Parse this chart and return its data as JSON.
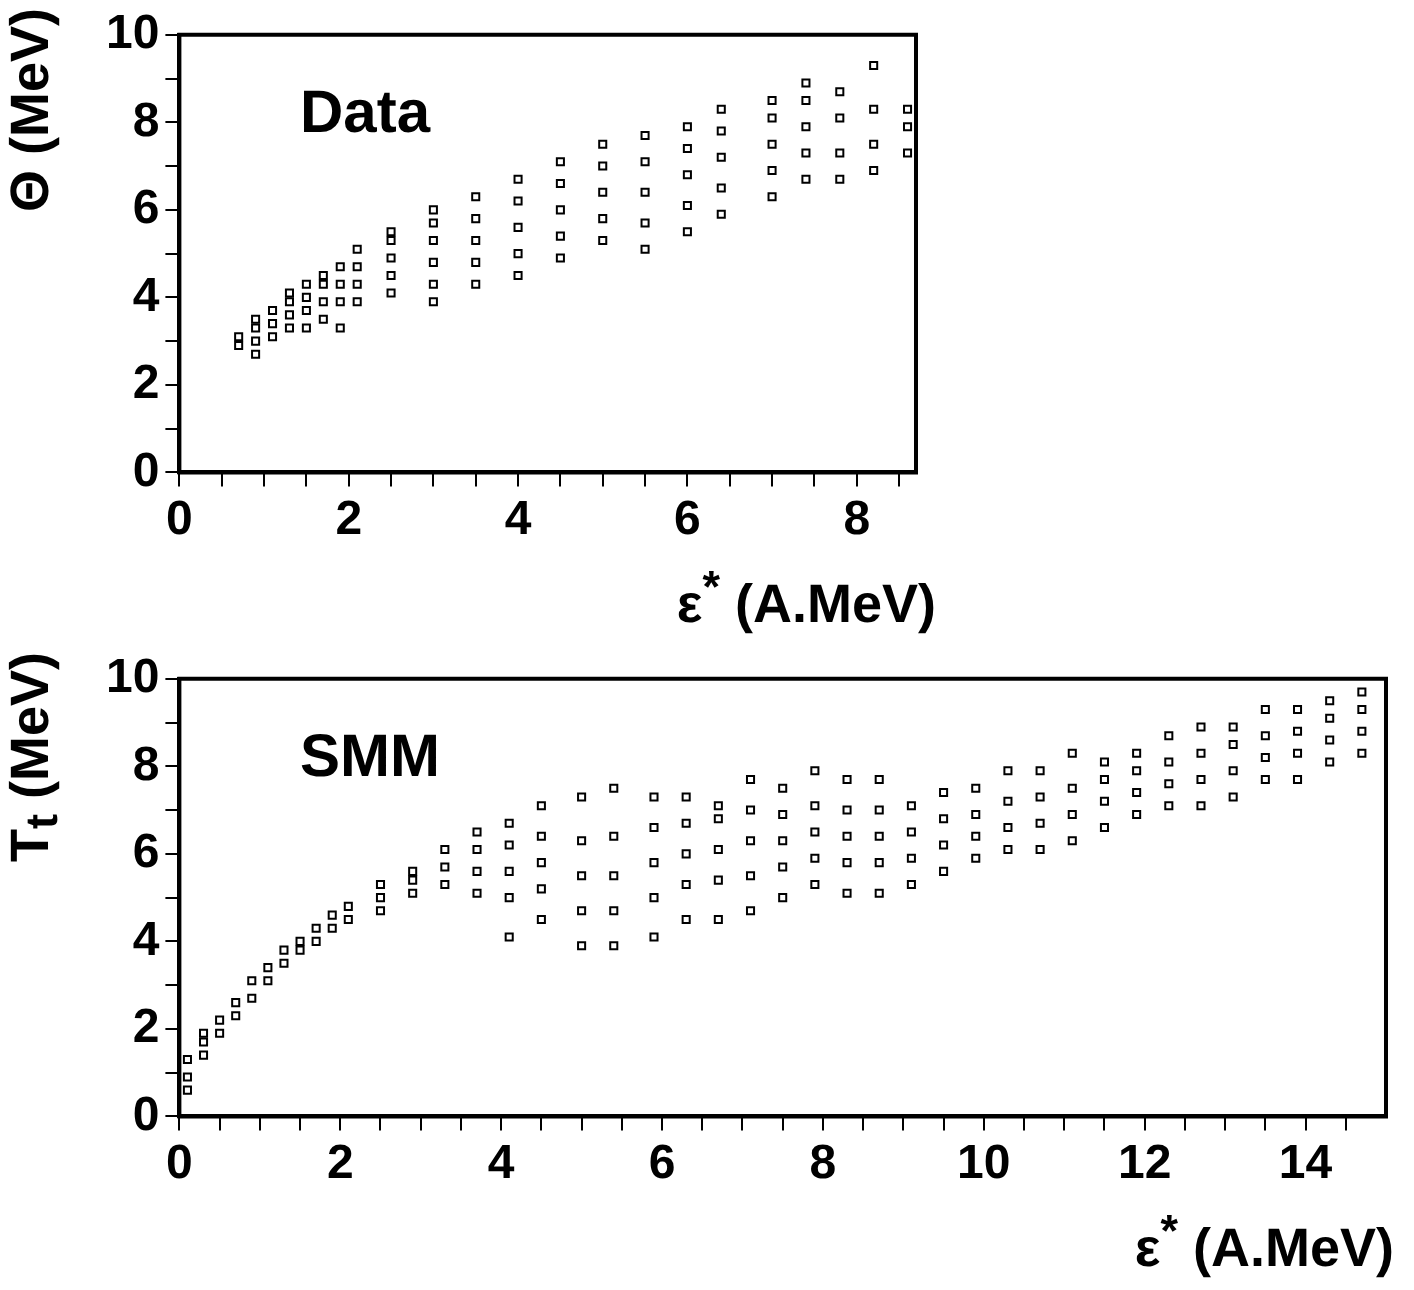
{
  "chart_data": [
    {
      "type": "scatter",
      "xlabel": "ε$^{*}$ (A.MeV)",
      "ylabel": "Θ (MeV)",
      "annotations": [
        "Data"
      ],
      "marker": "square",
      "legend": false,
      "grid": false,
      "xlim": [
        0,
        8.7
      ],
      "ylim": [
        0,
        10
      ],
      "xticks": [
        0,
        {
          "value": 0.5,
          "label": null
        },
        {
          "value": 1,
          "label": null
        },
        {
          "value": 1.5,
          "label": null
        },
        2,
        {
          "value": 2.5,
          "label": null
        },
        {
          "value": 3,
          "label": null
        },
        {
          "value": 3.5,
          "label": null
        },
        4,
        {
          "value": 4.5,
          "label": null
        },
        {
          "value": 5,
          "label": null
        },
        {
          "value": 5.5,
          "label": null
        },
        6,
        {
          "value": 6.5,
          "label": null
        },
        {
          "value": 7,
          "label": null
        },
        {
          "value": 7.5,
          "label": null
        },
        8,
        {
          "value": 8.5,
          "label": null
        }
      ],
      "yticks": [
        0,
        {
          "value": 1,
          "label": null
        },
        2,
        {
          "value": 3,
          "label": null
        },
        4,
        {
          "value": 5,
          "label": null
        },
        6,
        {
          "value": 7,
          "label": null
        },
        8,
        {
          "value": 9,
          "label": null
        },
        10
      ],
      "series": [
        {
          "color": "#000000",
          "x": [
            0.7,
            0.7,
            0.9,
            0.9,
            0.9,
            0.9,
            1.1,
            1.1,
            1.1,
            1.3,
            1.3,
            1.3,
            1.3,
            1.5,
            1.5,
            1.5,
            1.5,
            1.7,
            1.7,
            1.7,
            1.7,
            1.9,
            1.9,
            1.9,
            1.9,
            2.1,
            2.1,
            2.1,
            2.1,
            2.5,
            2.5,
            2.5,
            2.5,
            2.5,
            3.0,
            3.0,
            3.0,
            3.0,
            3.0,
            3.0,
            3.5,
            3.5,
            3.5,
            3.5,
            3.5,
            4.0,
            4.0,
            4.0,
            4.0,
            4.0,
            4.5,
            4.5,
            4.5,
            4.5,
            4.5,
            5.0,
            5.0,
            5.0,
            5.0,
            5.0,
            5.5,
            5.5,
            5.5,
            5.5,
            5.5,
            6.0,
            6.0,
            6.0,
            6.0,
            6.0,
            6.4,
            6.4,
            6.4,
            6.4,
            6.4,
            7.0,
            7.0,
            7.0,
            7.0,
            7.0,
            7.4,
            7.4,
            7.4,
            7.4,
            7.4,
            7.8,
            7.8,
            7.8,
            7.8,
            8.2,
            8.2,
            8.2,
            8.2,
            8.6,
            8.6,
            8.6
          ],
          "values": [
            2.9,
            3.1,
            2.7,
            3.0,
            3.3,
            3.5,
            3.1,
            3.4,
            3.7,
            3.3,
            3.6,
            3.9,
            4.1,
            3.3,
            3.7,
            4.0,
            4.3,
            3.5,
            3.9,
            4.3,
            4.5,
            3.3,
            3.9,
            4.3,
            4.7,
            3.9,
            4.3,
            4.7,
            5.1,
            4.1,
            4.5,
            4.9,
            5.3,
            5.5,
            3.9,
            4.3,
            4.8,
            5.3,
            5.7,
            6.0,
            4.3,
            4.8,
            5.3,
            5.8,
            6.3,
            4.5,
            5.0,
            5.6,
            6.2,
            6.7,
            4.9,
            5.4,
            6.0,
            6.6,
            7.1,
            5.3,
            5.8,
            6.4,
            7.0,
            7.5,
            5.1,
            5.7,
            6.4,
            7.1,
            7.7,
            5.5,
            6.1,
            6.8,
            7.4,
            7.9,
            5.9,
            6.5,
            7.2,
            7.8,
            8.3,
            6.3,
            6.9,
            7.5,
            8.1,
            8.5,
            6.7,
            7.3,
            7.9,
            8.5,
            8.9,
            6.7,
            7.3,
            8.1,
            8.7,
            6.9,
            7.5,
            8.3,
            9.3,
            7.3,
            7.9,
            8.3
          ]
        }
      ]
    },
    {
      "type": "scatter",
      "xlabel": "ε$^{*}$ (A.MeV)",
      "ylabel": "T$_{t}$ (MeV)",
      "annotations": [
        "SMM"
      ],
      "marker": "square",
      "legend": false,
      "grid": false,
      "xlim": [
        0,
        15
      ],
      "ylim": [
        0,
        10
      ],
      "xticks": [
        0,
        {
          "value": 0.5,
          "label": null
        },
        {
          "value": 1,
          "label": null
        },
        {
          "value": 1.5,
          "label": null
        },
        2,
        {
          "value": 2.5,
          "label": null
        },
        {
          "value": 3,
          "label": null
        },
        {
          "value": 3.5,
          "label": null
        },
        4,
        {
          "value": 4.5,
          "label": null
        },
        {
          "value": 5,
          "label": null
        },
        {
          "value": 5.5,
          "label": null
        },
        6,
        {
          "value": 6.5,
          "label": null
        },
        {
          "value": 7,
          "label": null
        },
        {
          "value": 7.5,
          "label": null
        },
        8,
        {
          "value": 8.5,
          "label": null
        },
        {
          "value": 9,
          "label": null
        },
        {
          "value": 9.5,
          "label": null
        },
        10,
        {
          "value": 10.5,
          "label": null
        },
        {
          "value": 11,
          "label": null
        },
        {
          "value": 11.5,
          "label": null
        },
        12,
        {
          "value": 12.5,
          "label": null
        },
        {
          "value": 13,
          "label": null
        },
        {
          "value": 13.5,
          "label": null
        },
        14,
        {
          "value": 14.5,
          "label": null
        }
      ],
      "yticks": [
        0,
        {
          "value": 1,
          "label": null
        },
        2,
        {
          "value": 3,
          "label": null
        },
        4,
        {
          "value": 5,
          "label": null
        },
        6,
        {
          "value": 7,
          "label": null
        },
        8,
        {
          "value": 9,
          "label": null
        },
        10
      ],
      "series": [
        {
          "color": "#000000",
          "x": [
            0.1,
            0.1,
            0.1,
            0.3,
            0.3,
            0.3,
            0.5,
            0.5,
            0.7,
            0.7,
            0.9,
            0.9,
            1.1,
            1.1,
            1.3,
            1.3,
            1.5,
            1.5,
            1.7,
            1.7,
            1.9,
            1.9,
            2.1,
            2.1,
            2.5,
            2.5,
            2.5,
            2.9,
            2.9,
            2.9,
            3.3,
            3.3,
            3.3,
            3.7,
            3.7,
            3.7,
            3.7,
            4.1,
            4.1,
            4.1,
            4.1,
            4.1,
            4.5,
            4.5,
            4.5,
            4.5,
            4.5,
            5.0,
            5.0,
            5.0,
            5.0,
            5.0,
            5.4,
            5.4,
            5.4,
            5.4,
            5.4,
            5.9,
            5.9,
            5.9,
            5.9,
            5.9,
            6.3,
            6.3,
            6.3,
            6.3,
            6.3,
            6.7,
            6.7,
            6.7,
            6.7,
            6.7,
            7.1,
            7.1,
            7.1,
            7.1,
            7.1,
            7.5,
            7.5,
            7.5,
            7.5,
            7.5,
            7.9,
            7.9,
            7.9,
            7.9,
            7.9,
            8.3,
            8.3,
            8.3,
            8.3,
            8.3,
            8.7,
            8.7,
            8.7,
            8.7,
            8.7,
            9.1,
            9.1,
            9.1,
            9.1,
            9.5,
            9.5,
            9.5,
            9.5,
            9.9,
            9.9,
            9.9,
            9.9,
            10.3,
            10.3,
            10.3,
            10.3,
            10.7,
            10.7,
            10.7,
            10.7,
            11.1,
            11.1,
            11.1,
            11.1,
            11.5,
            11.5,
            11.5,
            11.5,
            11.9,
            11.9,
            11.9,
            11.9,
            12.3,
            12.3,
            12.3,
            12.3,
            12.7,
            12.7,
            12.7,
            12.7,
            13.1,
            13.1,
            13.1,
            13.1,
            13.5,
            13.5,
            13.5,
            13.5,
            13.9,
            13.9,
            13.9,
            13.9,
            14.3,
            14.3,
            14.3,
            14.3,
            14.7,
            14.7,
            14.7,
            14.7
          ],
          "values": [
            0.6,
            0.9,
            1.3,
            1.4,
            1.7,
            1.9,
            1.9,
            2.2,
            2.3,
            2.6,
            2.7,
            3.1,
            3.1,
            3.4,
            3.5,
            3.8,
            3.8,
            4.0,
            4.0,
            4.3,
            4.3,
            4.6,
            4.5,
            4.8,
            4.7,
            5.0,
            5.3,
            5.1,
            5.4,
            5.6,
            5.3,
            5.7,
            6.1,
            5.1,
            5.6,
            6.1,
            6.5,
            4.1,
            5.0,
            5.6,
            6.2,
            6.7,
            4.5,
            5.2,
            5.8,
            6.4,
            7.1,
            3.9,
            4.7,
            5.5,
            6.3,
            7.3,
            3.9,
            4.7,
            5.5,
            6.4,
            7.5,
            4.1,
            5.0,
            5.8,
            6.6,
            7.3,
            4.5,
            5.3,
            6.0,
            6.7,
            7.3,
            4.5,
            5.4,
            6.1,
            6.8,
            7.1,
            4.7,
            5.5,
            6.3,
            7.0,
            7.7,
            5.0,
            5.7,
            6.3,
            6.9,
            7.5,
            5.3,
            5.9,
            6.5,
            7.1,
            7.9,
            5.1,
            5.8,
            6.4,
            7.0,
            7.7,
            5.1,
            5.8,
            6.4,
            7.0,
            7.7,
            5.3,
            5.9,
            6.5,
            7.1,
            5.6,
            6.2,
            6.8,
            7.4,
            5.9,
            6.4,
            6.9,
            7.5,
            6.1,
            6.6,
            7.2,
            7.9,
            6.1,
            6.7,
            7.3,
            7.9,
            6.3,
            6.9,
            7.5,
            8.3,
            6.6,
            7.2,
            7.7,
            8.1,
            6.9,
            7.4,
            7.9,
            8.3,
            7.1,
            7.6,
            8.1,
            8.7,
            7.1,
            7.7,
            8.3,
            8.9,
            7.3,
            7.9,
            8.5,
            8.9,
            7.7,
            8.2,
            8.7,
            9.3,
            7.7,
            8.3,
            8.8,
            9.3,
            8.1,
            8.6,
            9.1,
            9.5,
            8.3,
            8.8,
            9.3,
            9.7
          ]
        }
      ]
    }
  ]
}
